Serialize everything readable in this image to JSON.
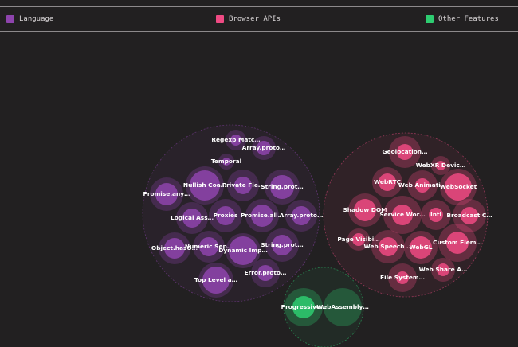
{
  "legend": [
    {
      "label": "Language",
      "color": "#8e44ad"
    },
    {
      "label": "Browser APIs",
      "color": "#ef4a83"
    },
    {
      "label": "Other Features",
      "color": "#2ecc71"
    }
  ],
  "chart_data": {
    "type": "packed-bubble",
    "groups": [
      {
        "name": "Language",
        "color": "#8e44ad",
        "items": [
          {
            "label": "Regexp Matc…"
          },
          {
            "label": "Array.proto…"
          },
          {
            "label": "Temporal"
          },
          {
            "label": "Promise.any…"
          },
          {
            "label": "Nullish Coa…"
          },
          {
            "label": "Private Fie…"
          },
          {
            "label": "String.prot…"
          },
          {
            "label": "Logical Ass…"
          },
          {
            "label": "Proxies"
          },
          {
            "label": "Promise.all…"
          },
          {
            "label": "Array.proto…"
          },
          {
            "label": "Object.hasO…"
          },
          {
            "label": "Numeric Sep…"
          },
          {
            "label": "Dynamic Imp…"
          },
          {
            "label": "String.prot…"
          },
          {
            "label": "Error.proto…"
          },
          {
            "label": "Top Level a…"
          }
        ]
      },
      {
        "name": "Browser APIs",
        "color": "#ef4a83",
        "items": [
          {
            "label": "Geolocation…"
          },
          {
            "label": "WebXR Devic…"
          },
          {
            "label": "WebRTC"
          },
          {
            "label": "Web Animati…"
          },
          {
            "label": "WebSocket"
          },
          {
            "label": "Shadow DOM"
          },
          {
            "label": "Service Wor…"
          },
          {
            "label": "Intl"
          },
          {
            "label": "Broadcast C…"
          },
          {
            "label": "Page Visibi…"
          },
          {
            "label": "Web Speech …"
          },
          {
            "label": "WebGL"
          },
          {
            "label": "Custom Elem…"
          },
          {
            "label": "File System…"
          },
          {
            "label": "Web Share A…"
          }
        ]
      },
      {
        "name": "Other Features",
        "color": "#2ecc71",
        "items": [
          {
            "label": "Progressive…"
          },
          {
            "label": "WebAssembly…"
          }
        ]
      }
    ],
    "legend_position": "top"
  }
}
